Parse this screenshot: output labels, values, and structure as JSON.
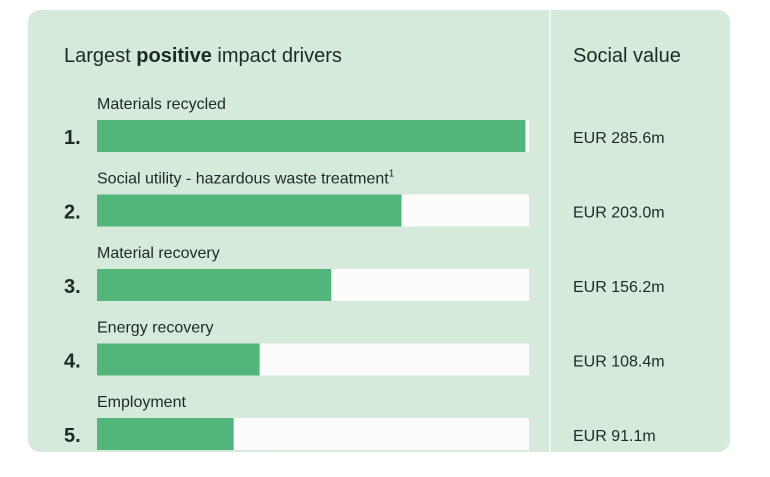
{
  "chart_data": {
    "type": "bar",
    "title_parts": [
      "Largest ",
      "positive",
      " impact drivers"
    ],
    "value_header": "Social value",
    "ranks": [
      "1.",
      "2.",
      "3.",
      "4.",
      "5."
    ],
    "categories": [
      "Materials recycled",
      "Social utility - hazardous waste treatment",
      "Material recovery",
      "Energy recovery",
      "Employment"
    ],
    "category_notes": [
      null,
      "1",
      null,
      null,
      null
    ],
    "values": [
      285.6,
      203.0,
      156.2,
      108.4,
      91.1
    ],
    "value_labels": [
      "EUR 285.6m",
      "EUR 203.0m",
      "EUR 156.2m",
      "EUR 108.4m",
      "EUR 91.1m"
    ],
    "color": "#52b57a",
    "xlim": [
      0,
      288
    ]
  }
}
